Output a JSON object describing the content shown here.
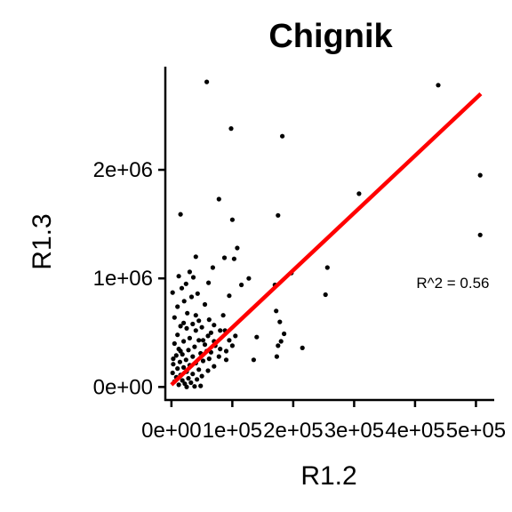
{
  "chart_data": {
    "type": "scatter",
    "title": "Chignik",
    "xlabel": "R1.2",
    "ylabel": "R1.3",
    "xlim": [
      -10000,
      530000
    ],
    "ylim": [
      -120000,
      2950000
    ],
    "x_ticks": [
      0,
      100000,
      200000,
      300000,
      400000,
      500000
    ],
    "x_tick_labels": [
      "0e+00",
      "1e+05",
      "2e+05",
      "3e+05",
      "4e+05",
      "5e+05"
    ],
    "y_ticks": [
      0,
      1000000,
      2000000
    ],
    "y_tick_labels": [
      "0e+00",
      "1e+06",
      "2e+06"
    ],
    "annotation": {
      "text": "R^2 = 0.56",
      "x": 462000,
      "y": 960000
    },
    "fit_line": {
      "color": "#ff0000",
      "x": [
        0,
        508000
      ],
      "y": [
        20000,
        2700000
      ]
    },
    "point_color": "#000000",
    "points": [
      [
        58000,
        2810000
      ],
      [
        438000,
        2780000
      ],
      [
        98000,
        2380000
      ],
      [
        182000,
        2310000
      ],
      [
        507000,
        1950000
      ],
      [
        308000,
        1780000
      ],
      [
        78000,
        1730000
      ],
      [
        175000,
        1580000
      ],
      [
        15000,
        1590000
      ],
      [
        100000,
        1540000
      ],
      [
        507000,
        1400000
      ],
      [
        108000,
        1280000
      ],
      [
        40000,
        1200000
      ],
      [
        103000,
        1180000
      ],
      [
        87000,
        1190000
      ],
      [
        68000,
        1100000
      ],
      [
        256000,
        1100000
      ],
      [
        197000,
        1050000
      ],
      [
        127000,
        1000000
      ],
      [
        30000,
        1060000
      ],
      [
        36000,
        1010000
      ],
      [
        12000,
        1020000
      ],
      [
        24000,
        950000
      ],
      [
        170000,
        940000
      ],
      [
        61000,
        960000
      ],
      [
        115000,
        940000
      ],
      [
        17000,
        910000
      ],
      [
        2000,
        870000
      ],
      [
        43000,
        860000
      ],
      [
        33000,
        830000
      ],
      [
        95000,
        840000
      ],
      [
        253000,
        850000
      ],
      [
        21000,
        790000
      ],
      [
        10000,
        740000
      ],
      [
        55000,
        760000
      ],
      [
        172000,
        700000
      ],
      [
        26000,
        680000
      ],
      [
        85000,
        660000
      ],
      [
        40000,
        660000
      ],
      [
        5000,
        640000
      ],
      [
        62000,
        620000
      ],
      [
        45000,
        610000
      ],
      [
        178000,
        600000
      ],
      [
        20000,
        590000
      ],
      [
        35000,
        580000
      ],
      [
        70000,
        570000
      ],
      [
        15000,
        560000
      ],
      [
        50000,
        550000
      ],
      [
        25000,
        540000
      ],
      [
        80000,
        520000
      ],
      [
        185000,
        490000
      ],
      [
        140000,
        460000
      ],
      [
        10000,
        480000
      ],
      [
        60000,
        470000
      ],
      [
        30000,
        450000
      ],
      [
        95000,
        430000
      ],
      [
        45000,
        430000
      ],
      [
        20000,
        420000
      ],
      [
        180000,
        420000
      ],
      [
        5000,
        400000
      ],
      [
        55000,
        390000
      ],
      [
        72000,
        380000
      ],
      [
        38000,
        370000
      ],
      [
        175000,
        380000
      ],
      [
        215000,
        360000
      ],
      [
        12000,
        350000
      ],
      [
        28000,
        340000
      ],
      [
        90000,
        330000
      ],
      [
        65000,
        320000
      ],
      [
        48000,
        310000
      ],
      [
        18000,
        300000
      ],
      [
        8000,
        290000
      ],
      [
        35000,
        280000
      ],
      [
        78000,
        280000
      ],
      [
        173000,
        280000
      ],
      [
        135000,
        250000
      ],
      [
        62000,
        260000
      ],
      [
        24000,
        250000
      ],
      [
        52000,
        240000
      ],
      [
        14000,
        230000
      ],
      [
        40000,
        220000
      ],
      [
        3000,
        210000
      ],
      [
        30000,
        200000
      ],
      [
        70000,
        190000
      ],
      [
        20000,
        180000
      ],
      [
        10000,
        170000
      ],
      [
        45000,
        160000
      ],
      [
        60000,
        150000
      ],
      [
        25000,
        140000
      ],
      [
        2000,
        130000
      ],
      [
        35000,
        120000
      ],
      [
        15000,
        110000
      ],
      [
        50000,
        100000
      ],
      [
        8000,
        90000
      ],
      [
        28000,
        80000
      ],
      [
        42000,
        70000
      ],
      [
        18000,
        60000
      ],
      [
        5000,
        50000
      ],
      [
        32000,
        40000
      ],
      [
        22000,
        30000
      ],
      [
        12000,
        20000
      ],
      [
        48000,
        10000
      ],
      [
        38000,
        5000
      ],
      [
        25000,
        0
      ],
      [
        80000,
        350000
      ],
      [
        100000,
        380000
      ],
      [
        90000,
        250000
      ],
      [
        15000,
        330000
      ],
      [
        65000,
        500000
      ],
      [
        88000,
        520000
      ],
      [
        3000,
        260000
      ],
      [
        52000,
        430000
      ],
      [
        40000,
        520000
      ],
      [
        70000,
        420000
      ],
      [
        105000,
        470000
      ],
      [
        58000,
        330000
      ]
    ]
  }
}
